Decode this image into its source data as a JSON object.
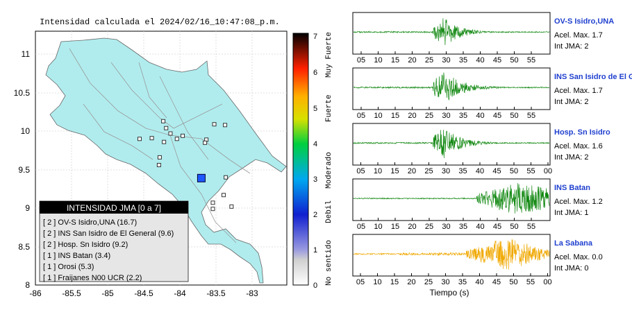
{
  "map": {
    "title": "Intensidad calculada el 2024/02/16_10:47:08_p.m.",
    "x_ticks": [
      "-86",
      "-85.5",
      "-85",
      "-84.5",
      "-84",
      "-83.5",
      "-83"
    ],
    "y_ticks": [
      "11",
      "10.5",
      "10",
      "9.5",
      "9",
      "8.5",
      "8"
    ],
    "legend": {
      "title": "INTENSIDAD JMA [0 a 7]",
      "items": [
        "[ 2 ]  OV-S Isidro,UNA (16.7)",
        "[ 2 ]  INS San Isidro de El General (9.6)",
        "[ 2 ]  Hosp. Sn Isidro (9.2)",
        "[ 1 ]  INS Batan (3.4)",
        "[ 1 ]  Orosi (5.3)",
        "[ 1 ]  Fraijanes N00 UCR (2.2)"
      ]
    },
    "colorbar": {
      "ticks": [
        "0",
        "1",
        "2",
        "3",
        "4",
        "5",
        "6",
        "7"
      ],
      "categories": [
        "No sentido",
        "Debil",
        "Moderado",
        "Fuerte",
        "Muy Fuerte"
      ]
    }
  },
  "traces": {
    "xlabel": "Tiempo (s)",
    "panels": [
      {
        "station": "OV-S Isidro,UNA",
        "acel": "Acel. Max. 1.7",
        "int": "Int JMA: 2",
        "color": "#118811",
        "ticks": [
          "05",
          "10",
          "15",
          "20",
          "25",
          "30",
          "35",
          "40",
          "45",
          "50",
          "55"
        ]
      },
      {
        "station": "INS San Isidro de El Ge",
        "acel": "Acel. Max. 1.7",
        "int": "Int JMA: 2",
        "color": "#118811",
        "ticks": [
          "05",
          "10",
          "15",
          "20",
          "25",
          "30",
          "35",
          "40",
          "45",
          "50",
          "55"
        ]
      },
      {
        "station": "Hosp. Sn Isidro",
        "acel": "Acel. Max. 1.6",
        "int": "Int JMA: 2",
        "color": "#118811",
        "ticks": [
          "05",
          "10",
          "15",
          "20",
          "25",
          "30",
          "35",
          "40",
          "45",
          "50",
          "55",
          "00"
        ]
      },
      {
        "station": "INS Batan",
        "acel": "Acel. Max. 1.2",
        "int": "Int JMA: 1",
        "color": "#118811",
        "ticks": [
          "05",
          "10",
          "15",
          "20",
          "25",
          "30",
          "35",
          "40",
          "45",
          "50",
          "55"
        ]
      },
      {
        "station": "La Sabana",
        "acel": "Acel. Max. 0.0",
        "int": "Int JMA: 0",
        "color": "#f0a800",
        "ticks": [
          "05",
          "10",
          "15",
          "20",
          "25",
          "30",
          "35",
          "40",
          "45",
          "50",
          "55",
          "00"
        ]
      }
    ]
  },
  "chart_data": {
    "type": "scatter",
    "title": "Intensidad calculada el 2024/02/16_10:47:08_p.m.",
    "xlim": [
      -86,
      -82.5
    ],
    "ylim": [
      8,
      11.3
    ],
    "epicenter": {
      "x": -83.69,
      "y": 9.39
    },
    "stations": [
      {
        "x": -84.22,
        "y": 10.13
      },
      {
        "x": -84.18,
        "y": 10.04
      },
      {
        "x": -84.12,
        "y": 9.97
      },
      {
        "x": -83.95,
        "y": 9.94
      },
      {
        "x": -84.38,
        "y": 9.91
      },
      {
        "x": -84.55,
        "y": 9.9
      },
      {
        "x": -84.21,
        "y": 9.86
      },
      {
        "x": -84.03,
        "y": 9.9
      },
      {
        "x": -83.62,
        "y": 9.89
      },
      {
        "x": -83.64,
        "y": 9.85
      },
      {
        "x": -83.51,
        "y": 10.09
      },
      {
        "x": -83.36,
        "y": 10.08
      },
      {
        "x": -84.27,
        "y": 9.66
      },
      {
        "x": -84.28,
        "y": 9.56
      },
      {
        "x": -83.35,
        "y": 9.4
      },
      {
        "x": -83.53,
        "y": 9.07
      },
      {
        "x": -83.38,
        "y": 9.17
      },
      {
        "x": -83.27,
        "y": 9.02
      },
      {
        "x": -83.53,
        "y": 8.99
      }
    ]
  }
}
